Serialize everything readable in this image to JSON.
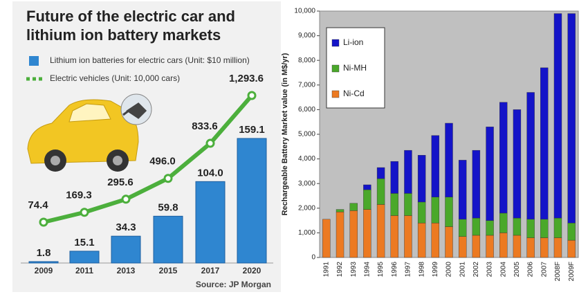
{
  "chart_data": [
    {
      "type": "combo",
      "title": "Future of the electric car and lithium ion battery markets",
      "categories": [
        "2009",
        "2011",
        "2013",
        "2015",
        "2017",
        "2020"
      ],
      "series": [
        {
          "name": "Lithium ion batteries for electric cars  (Unit: $10 million)",
          "type": "bar",
          "color": "#2f86d0",
          "values": [
            1.8,
            15.1,
            34.3,
            59.8,
            104.0,
            159.1
          ],
          "value_labels": [
            "1.8",
            "15.1",
            "34.3",
            "59.8",
            "104.0",
            "159.1"
          ]
        },
        {
          "name": "Electric vehicles (Unit: 10,000 cars)",
          "type": "line",
          "color": "#4caf3c",
          "values": [
            74.4,
            169.3,
            295.6,
            496.0,
            833.6,
            1293.6
          ],
          "value_labels": [
            "74.4",
            "169.3",
            "295.6",
            "496.0",
            "833.6",
            "1,293.6"
          ]
        }
      ],
      "source": "Source: JP Morgan"
    },
    {
      "type": "stacked-bar",
      "ylabel": "Rechargeable Battery Market value (in M$/yr)",
      "categories": [
        "1991",
        "1992",
        "1993",
        "1994",
        "1995",
        "1996",
        "1997",
        "1998",
        "1999",
        "2000",
        "2001",
        "2002",
        "2003",
        "2004",
        "2005",
        "2006",
        "2007",
        "2008F",
        "2009F"
      ],
      "series": [
        {
          "name": "Li-ion",
          "color": "#1414c8",
          "values": [
            0,
            0,
            0,
            200,
            450,
            1300,
            1750,
            1900,
            2500,
            3000,
            2400,
            2750,
            3800,
            4500,
            4400,
            5150,
            6150,
            8300,
            8500
          ]
        },
        {
          "name": "Ni-MH",
          "color": "#4aa82a",
          "values": [
            0,
            100,
            300,
            800,
            1050,
            900,
            900,
            850,
            1050,
            1200,
            700,
            700,
            600,
            800,
            700,
            750,
            750,
            800,
            700
          ]
        },
        {
          "name": "Ni-Cd",
          "color": "#ec7a22",
          "values": [
            1550,
            1850,
            1900,
            1950,
            2150,
            1700,
            1700,
            1400,
            1400,
            1250,
            850,
            900,
            900,
            1000,
            900,
            800,
            800,
            800,
            700
          ]
        }
      ],
      "ylim": [
        0,
        10000
      ],
      "yticks": [
        0,
        {
          "value": 1000,
          "label": "1,000"
        },
        {
          "value": 2000,
          "label": "2,000"
        },
        {
          "value": 3000,
          "label": "3,000"
        },
        {
          "value": 4000,
          "label": "4,000"
        },
        {
          "value": 5000,
          "label": "5,000"
        },
        {
          "value": 6000,
          "label": "6,000"
        },
        {
          "value": 7000,
          "label": "7,000"
        },
        {
          "value": 8000,
          "label": "8,000"
        },
        {
          "value": 9000,
          "label": "9,000"
        },
        {
          "value": 10000,
          "label": "10,000"
        }
      ],
      "legend": "upper left",
      "plot_background": "#c0c0c0"
    }
  ]
}
